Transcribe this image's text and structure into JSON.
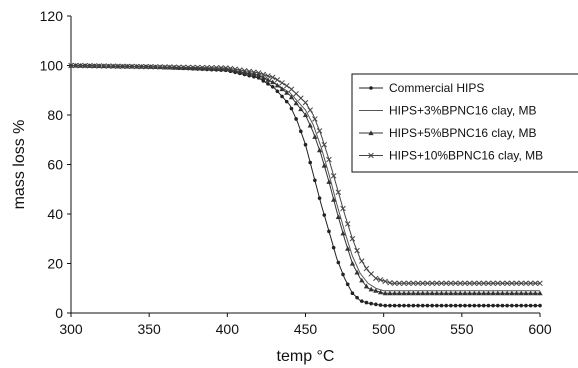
{
  "chart_data": {
    "type": "line",
    "title": "",
    "xlabel": "temp °C",
    "ylabel": "mass loss %",
    "xlim": [
      300,
      600
    ],
    "ylim": [
      0,
      120
    ],
    "xticks": [
      300,
      350,
      400,
      450,
      500,
      550,
      600
    ],
    "yticks": [
      0,
      20,
      40,
      60,
      80,
      100,
      120
    ],
    "grid": false,
    "legend_position": "right",
    "series": [
      {
        "name": "Commercial HIPS",
        "marker": "dot",
        "color": "#222222",
        "x": [
          300,
          350,
          400,
          420,
          430,
          440,
          445,
          450,
          455,
          460,
          465,
          470,
          475,
          480,
          485,
          490,
          500,
          520,
          550,
          600
        ],
        "values": [
          100,
          99.5,
          98,
          95,
          91,
          84,
          77,
          68,
          56,
          44,
          33,
          22,
          14,
          8,
          5,
          4,
          3,
          3,
          3,
          3
        ]
      },
      {
        "name": "HIPS+3%BPNC16 clay, MB",
        "marker": "none",
        "color": "#555555",
        "x": [
          300,
          350,
          400,
          420,
          430,
          440,
          450,
          455,
          460,
          465,
          470,
          475,
          480,
          485,
          490,
          495,
          500,
          520,
          550,
          600
        ],
        "values": [
          100,
          99.5,
          98.5,
          96,
          93,
          89,
          82,
          76,
          67,
          56,
          44,
          33,
          23,
          16,
          12,
          10,
          9,
          9,
          9,
          9
        ]
      },
      {
        "name": "HIPS+5%BPNC16 clay, MB",
        "marker": "triangle",
        "color": "#333333",
        "x": [
          300,
          350,
          400,
          420,
          430,
          440,
          450,
          455,
          460,
          465,
          470,
          475,
          480,
          485,
          490,
          495,
          500,
          520,
          550,
          600
        ],
        "values": [
          100,
          99.5,
          98.5,
          96,
          93,
          88,
          80,
          73,
          64,
          53,
          41,
          30,
          20,
          14,
          10,
          9,
          8,
          8,
          8,
          8
        ]
      },
      {
        "name": "HIPS+10%BPNC16 clay, MB",
        "marker": "cross",
        "color": "#444444",
        "x": [
          300,
          350,
          400,
          420,
          430,
          440,
          450,
          455,
          460,
          465,
          470,
          475,
          480,
          485,
          490,
          495,
          500,
          505,
          520,
          550,
          600
        ],
        "values": [
          100,
          99.5,
          99,
          97,
          95,
          91,
          85,
          80,
          72,
          62,
          51,
          40,
          30,
          22,
          17,
          14,
          13,
          12,
          12,
          12,
          12
        ]
      }
    ]
  }
}
